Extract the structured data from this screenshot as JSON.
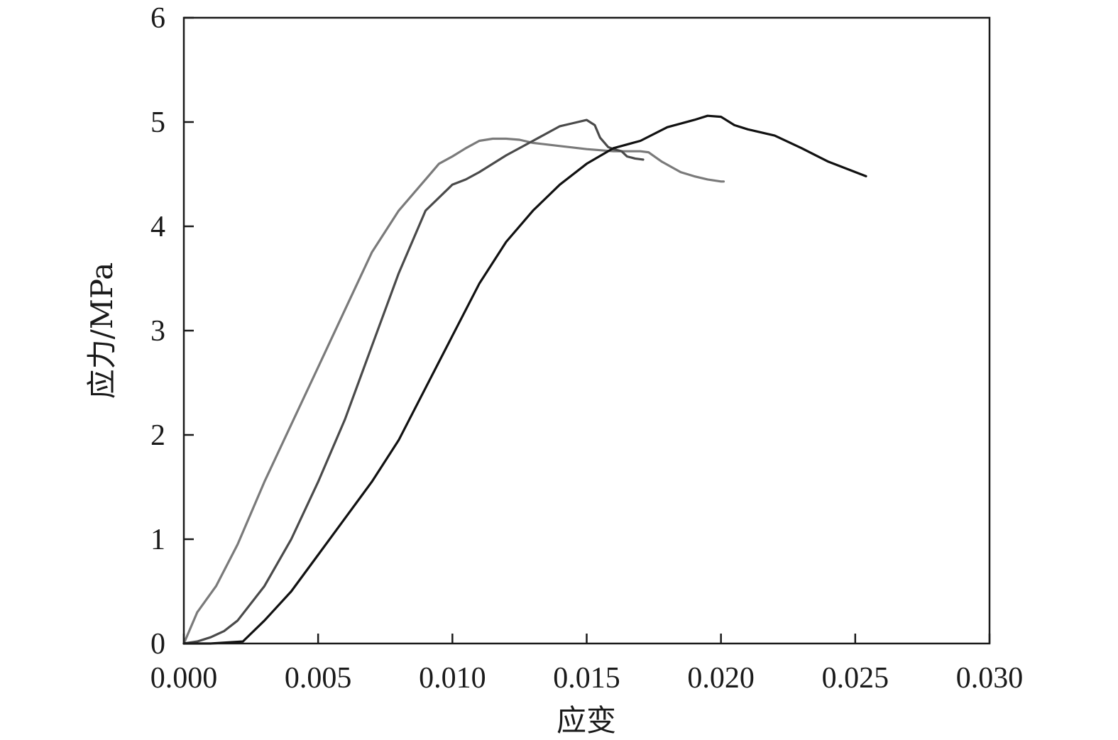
{
  "chart_data": {
    "type": "line",
    "xlabel": "应变",
    "ylabel": "应力/MPa",
    "xlim": [
      0,
      0.03
    ],
    "ylim": [
      0,
      6
    ],
    "xticks": [
      "0.000",
      "0.005",
      "0.010",
      "0.015",
      "0.020",
      "0.025",
      "0.030"
    ],
    "yticks": [
      "0",
      "1",
      "2",
      "3",
      "4",
      "5",
      "6"
    ],
    "grid": false,
    "legend": "none",
    "series": [
      {
        "color": "#7a7a7a",
        "x": [
          0.0,
          0.0005,
          0.0012,
          0.002,
          0.003,
          0.004,
          0.005,
          0.006,
          0.007,
          0.008,
          0.009,
          0.0095,
          0.01,
          0.0105,
          0.011,
          0.0115,
          0.012,
          0.0125,
          0.013,
          0.014,
          0.015,
          0.016,
          0.017,
          0.0173,
          0.0178,
          0.0185,
          0.019,
          0.0195,
          0.02,
          0.0201
        ],
        "y": [
          0.0,
          0.3,
          0.55,
          0.95,
          1.55,
          2.1,
          2.65,
          3.2,
          3.75,
          4.15,
          4.45,
          4.6,
          4.67,
          4.75,
          4.82,
          4.84,
          4.84,
          4.83,
          4.8,
          4.77,
          4.74,
          4.72,
          4.72,
          4.71,
          4.62,
          4.52,
          4.48,
          4.45,
          4.43,
          4.43
        ]
      },
      {
        "color": "#4a4a4a",
        "x": [
          0.0,
          0.0005,
          0.001,
          0.0015,
          0.002,
          0.003,
          0.004,
          0.005,
          0.006,
          0.007,
          0.008,
          0.009,
          0.01,
          0.0105,
          0.011,
          0.012,
          0.013,
          0.014,
          0.0145,
          0.015,
          0.0153,
          0.0155,
          0.0158,
          0.016,
          0.0163,
          0.0165,
          0.0168,
          0.0171
        ],
        "y": [
          0.0,
          0.02,
          0.06,
          0.12,
          0.22,
          0.55,
          1.0,
          1.55,
          2.15,
          2.85,
          3.55,
          4.15,
          4.4,
          4.45,
          4.52,
          4.68,
          4.82,
          4.96,
          4.99,
          5.02,
          4.97,
          4.85,
          4.76,
          4.74,
          4.72,
          4.67,
          4.65,
          4.64
        ]
      },
      {
        "color": "#111111",
        "x": [
          0.0,
          0.001,
          0.0022,
          0.003,
          0.004,
          0.005,
          0.006,
          0.007,
          0.008,
          0.009,
          0.01,
          0.011,
          0.012,
          0.013,
          0.014,
          0.015,
          0.016,
          0.017,
          0.018,
          0.019,
          0.0195,
          0.02,
          0.0205,
          0.021,
          0.022,
          0.023,
          0.024,
          0.0254
        ],
        "y": [
          0.0,
          0.0,
          0.02,
          0.22,
          0.5,
          0.85,
          1.2,
          1.55,
          1.95,
          2.45,
          2.95,
          3.45,
          3.85,
          4.15,
          4.4,
          4.6,
          4.75,
          4.82,
          4.95,
          5.02,
          5.06,
          5.05,
          4.97,
          4.93,
          4.87,
          4.75,
          4.62,
          4.48
        ]
      }
    ]
  }
}
